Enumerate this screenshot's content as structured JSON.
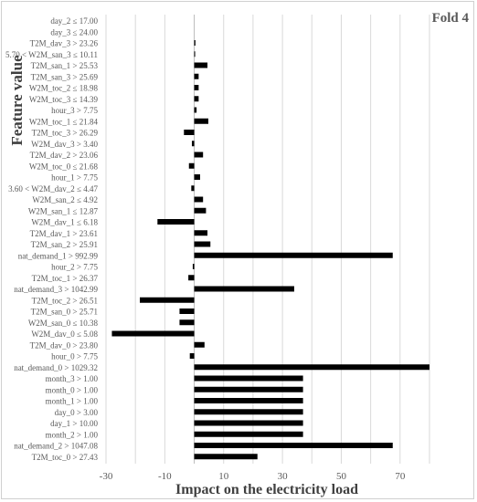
{
  "chart_data": {
    "type": "bar",
    "orientation": "horizontal",
    "title": "Fold 4",
    "xlabel": "Impact on the electricity load",
    "ylabel": "Feature value",
    "xlim": [
      -30,
      80
    ],
    "xticks": [
      -30,
      -10,
      10,
      30,
      50,
      70
    ],
    "grid": "vertical",
    "bar_color": "#000000",
    "grid_color": "#d9d9d9",
    "categories": [
      "day_2 ≤ 17.00",
      "day_3 ≤ 24.00",
      "T2M_dav_3 > 23.26",
      "5.70 < W2M_san_3 ≤ 10.11",
      "T2M_san_1 > 25.53",
      "T2M_san_3 > 25.69",
      "W2M_toc_2 ≤ 18.98",
      "W2M_toc_3 ≤ 14.39",
      "hour_3 > 7.75",
      "W2M_toc_1 ≤ 21.84",
      "T2M_toc_3 > 26.29",
      "W2M_dav_3 > 3.40",
      "T2M_dav_2 > 23.06",
      "W2M_toc_0 ≤ 21.68",
      "hour_1 > 7.75",
      "3.60 < W2M_dav_2 ≤ 4.47",
      "W2M_san_2 ≤ 4.92",
      "W2M_san_1 ≤ 12.87",
      "W2M_dav_1 ≤ 6.18",
      "T2M_dav_1 > 23.61",
      "T2M_san_2 > 25.91",
      "nat_demand_1 > 992.99",
      "hour_2 > 7.75",
      "T2M_toc_1 > 26.37",
      "nat_demand_3 > 1042.99",
      "T2M_toc_2 > 26.51",
      "T2M_san_0 > 25.71",
      "W2M_san_0 ≤ 10.38",
      "W2M_dav_0 ≤ 5.08",
      "T2M_dav_0 > 23.80",
      "hour_0 > 7.75",
      "nat_demand_0 > 1029.32",
      "month_3 > 1.00",
      "month_0 > 1.00",
      "month_1 > 1.00",
      "day_0 > 3.00",
      "day_1 > 10.00",
      "month_2 > 1.00",
      "nat_demand_2 > 1047.08",
      "T2M_toc_0 > 27.43"
    ],
    "values": [
      0,
      0,
      0.4,
      0.2,
      4.5,
      1.5,
      1.5,
      1.5,
      0.8,
      4.8,
      -3.5,
      -0.8,
      3.0,
      -1.8,
      2.0,
      -1.0,
      3.0,
      4.0,
      -12.5,
      4.5,
      5.5,
      67.5,
      -0.5,
      -2.0,
      34.0,
      -18.5,
      -5.0,
      -5.0,
      -28.0,
      3.5,
      -1.5,
      80.0,
      37.0,
      37.0,
      37.0,
      37.0,
      37.0,
      37.0,
      67.5,
      21.5
    ]
  }
}
